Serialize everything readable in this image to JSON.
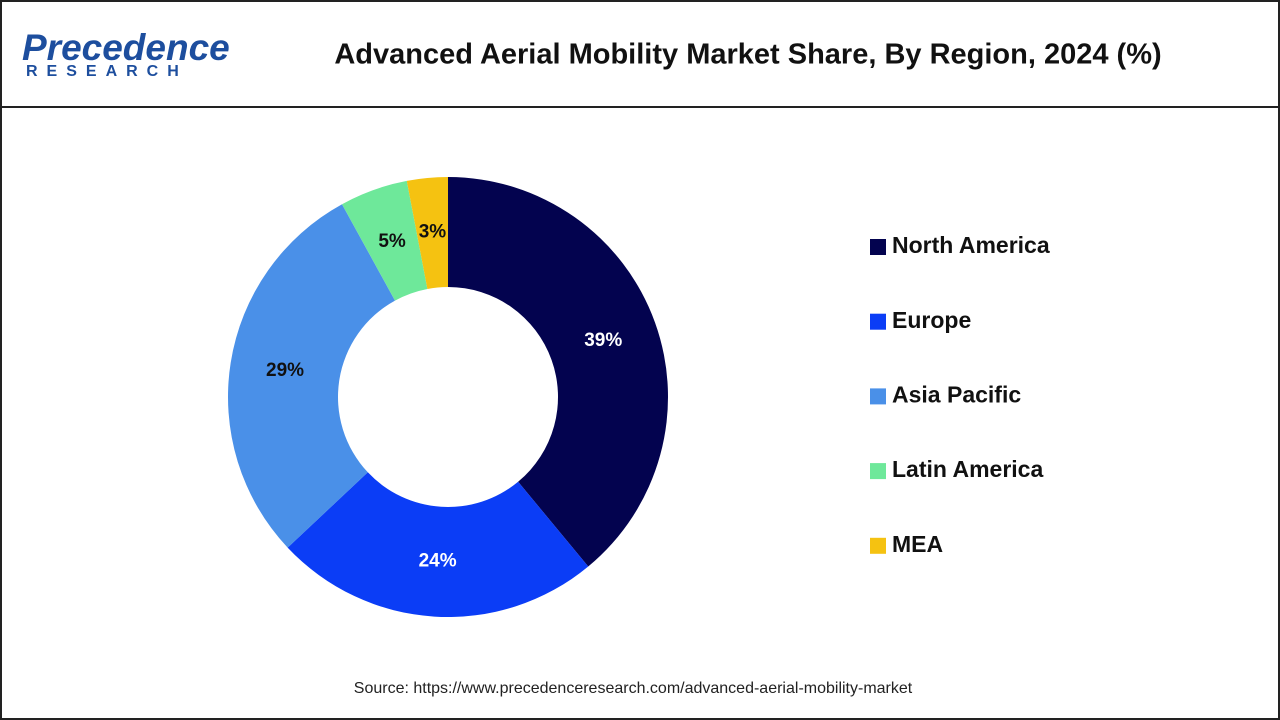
{
  "logo": {
    "name": "Precedence",
    "tagline": "RESEARCH"
  },
  "chart_data": {
    "type": "donut",
    "title": "Advanced Aerial Mobility Market Share, By Region, 2024 (%)",
    "categories": [
      "North America",
      "Europe",
      "Asia Pacific",
      "Latin America",
      "MEA"
    ],
    "values": [
      39,
      24,
      29,
      5,
      3
    ],
    "value_labels": [
      "39%",
      "24%",
      "29%",
      "5%",
      "3%"
    ],
    "colors": [
      "#03034f",
      "#0b3df6",
      "#4a90e8",
      "#6ee89a",
      "#f5c211"
    ],
    "legend": "right"
  },
  "source": "Source: https://www.precedenceresearch.com/advanced-aerial-mobility-market"
}
